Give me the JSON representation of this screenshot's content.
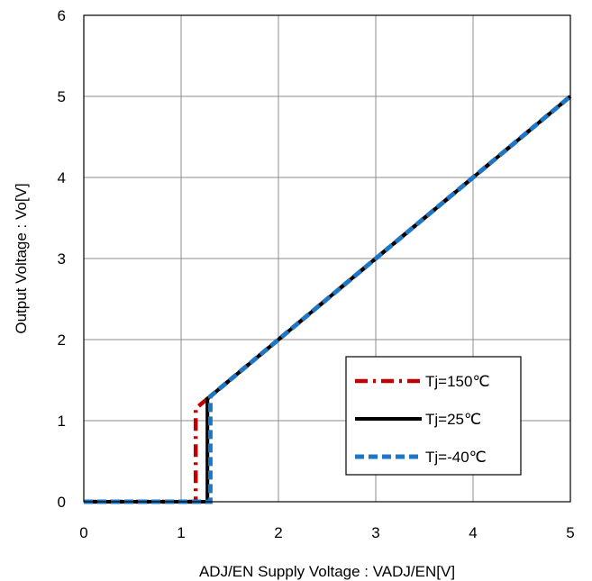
{
  "chart_data": {
    "type": "line",
    "title": "",
    "xlabel": "ADJ/EN Supply Voltage : VADJ/EN[V]",
    "ylabel": "Output Voltage : Vo[V]",
    "xlim": [
      0,
      5
    ],
    "ylim": [
      0,
      6
    ],
    "xticks": [
      "0",
      "1",
      "2",
      "3",
      "4",
      "5"
    ],
    "yticks": [
      "0",
      "1",
      "2",
      "3",
      "4",
      "5",
      "6"
    ],
    "grid": true,
    "legend_position": "bottom-right",
    "series": [
      {
        "name": "Tj=150℃",
        "color": "#c00000",
        "dash": "dash-dot",
        "points": [
          [
            0,
            0
          ],
          [
            1.15,
            0
          ],
          [
            1.15,
            1.15
          ],
          [
            1.25,
            1.25
          ],
          [
            5,
            5
          ]
        ]
      },
      {
        "name": "Tj=25℃",
        "color": "#000000",
        "dash": "solid",
        "points": [
          [
            0,
            0
          ],
          [
            1.27,
            0
          ],
          [
            1.27,
            1.27
          ],
          [
            5,
            5
          ]
        ]
      },
      {
        "name": "Tj=-40℃",
        "color": "#1f77c4",
        "dash": "dashed",
        "points": [
          [
            0,
            0
          ],
          [
            1.3,
            0
          ],
          [
            1.3,
            1.3
          ],
          [
            5,
            5
          ]
        ]
      }
    ]
  }
}
